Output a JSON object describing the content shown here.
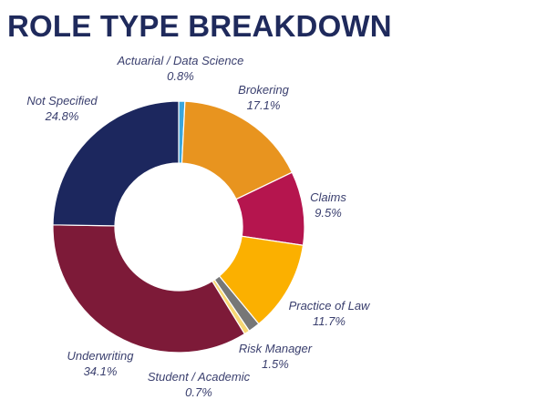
{
  "chart_data": {
    "type": "pie",
    "title": "ROLE TYPE BREAKDOWN",
    "donut": true,
    "legend": "none",
    "slices": [
      {
        "label": "Actuarial / Data Science",
        "value": 0.8,
        "value_label": "0.8%",
        "color": "#3aa6dd"
      },
      {
        "label": "Brokering",
        "value": 17.1,
        "value_label": "17.1%",
        "color": "#e8941f"
      },
      {
        "label": "Claims",
        "value": 9.5,
        "value_label": "9.5%",
        "color": "#b5154e"
      },
      {
        "label": "Practice of Law",
        "value": 11.7,
        "value_label": "11.7%",
        "color": "#fbb000"
      },
      {
        "label": "Risk Manager",
        "value": 1.5,
        "value_label": "1.5%",
        "color": "#777777"
      },
      {
        "label": "Student / Academic",
        "value": 0.7,
        "value_label": "0.7%",
        "color": "#f7d774"
      },
      {
        "label": "Underwriting",
        "value": 34.1,
        "value_label": "34.1%",
        "color": "#7d1a38"
      },
      {
        "label": "Not Specified",
        "value": 24.8,
        "value_label": "24.8%",
        "color": "#1c275e"
      }
    ]
  }
}
